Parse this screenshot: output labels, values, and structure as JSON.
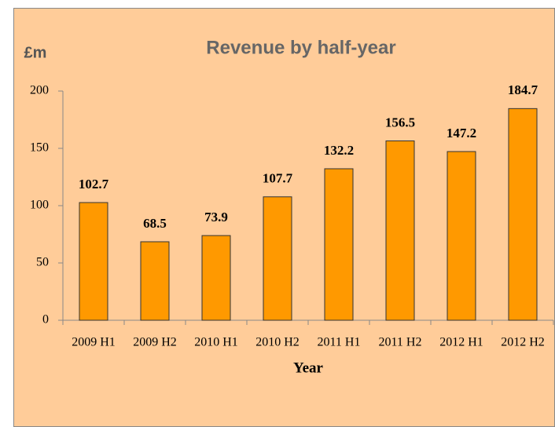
{
  "chart_data": {
    "type": "bar",
    "title": "Revenue by half-year",
    "y_label": "£m",
    "x_label": "Year",
    "categories": [
      "2009 H1",
      "2009 H2",
      "2010 H1",
      "2010 H2",
      "2011 H1",
      "2011 H2",
      "2012 H1",
      "2012 H2"
    ],
    "values": [
      102.7,
      68.5,
      73.9,
      107.7,
      132.2,
      156.5,
      147.2,
      184.7
    ],
    "color": "#ff9900",
    "ylim": [
      0,
      200
    ],
    "yticks": [
      0,
      50,
      100,
      150,
      200
    ],
    "grid": false
  }
}
